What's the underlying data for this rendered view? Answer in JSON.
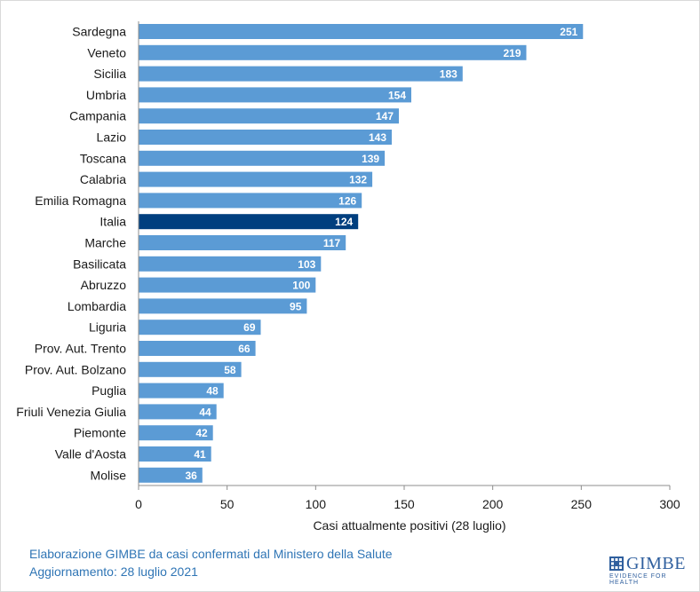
{
  "chart_data": {
    "type": "bar",
    "orientation": "horizontal",
    "categories": [
      "Sardegna",
      "Veneto",
      "Sicilia",
      "Umbria",
      "Campania",
      "Lazio",
      "Toscana",
      "Calabria",
      "Emilia Romagna",
      "Italia",
      "Marche",
      "Basilicata",
      "Abruzzo",
      "Lombardia",
      "Liguria",
      "Prov. Aut. Trento",
      "Prov. Aut. Bolzano",
      "Puglia",
      "Friuli Venezia Giulia",
      "Piemonte",
      "Valle d'Aosta",
      "Molise"
    ],
    "values": [
      251,
      219,
      183,
      154,
      147,
      143,
      139,
      132,
      126,
      124,
      117,
      103,
      100,
      95,
      69,
      66,
      58,
      48,
      44,
      42,
      41,
      36
    ],
    "highlight_category": "Italia",
    "xlabel": "Casi attualmente positivi (28 luglio)",
    "xlim": [
      0,
      300
    ],
    "xticks": [
      0,
      50,
      100,
      150,
      200,
      250,
      300
    ],
    "grid": false,
    "colors": {
      "bar": "#5b9bd5",
      "highlight": "#003f7f",
      "value_label": "#ffffff"
    }
  },
  "footer": {
    "line1": "Elaborazione GIMBE da casi confermati dal Ministero della Salute",
    "line2": "Aggiornamento: 28 luglio 2021"
  },
  "logo": {
    "word": "GIMBE",
    "tagline": "EVIDENCE FOR HEALTH",
    "color": "#2f5f9e"
  }
}
